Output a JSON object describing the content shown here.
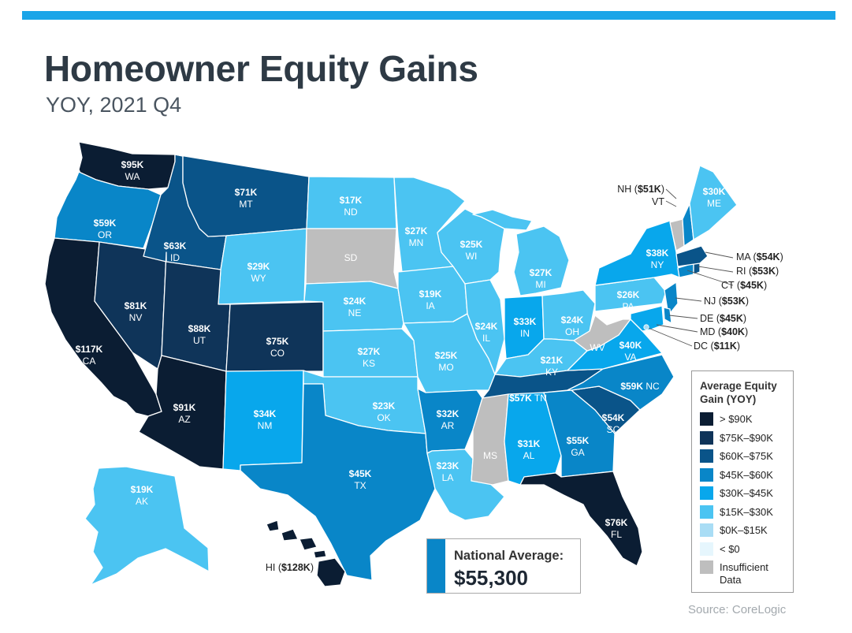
{
  "header": {
    "title": "Homeowner Equity Gains",
    "subtitle": "YOY, 2021 Q4"
  },
  "colors": {
    "accent": "#1BA5E8",
    "gt90": "#0B1D33",
    "c75_90": "#0F3459",
    "c60_75": "#0A5489",
    "c45_60": "#0986C8",
    "c30_45": "#08A7EC",
    "c15_30": "#4BC4F2",
    "c0_15": "#A9DDF5",
    "lt0": "#E6F6FD",
    "insufficient": "#BEBEBE"
  },
  "states": {
    "WA": {
      "value": "$95K",
      "abbr": "WA"
    },
    "OR": {
      "value": "$59K",
      "abbr": "OR"
    },
    "CA": {
      "value": "$117K",
      "abbr": "CA"
    },
    "NV": {
      "value": "$81K",
      "abbr": "NV"
    },
    "ID": {
      "value": "$63K",
      "abbr": "ID"
    },
    "MT": {
      "value": "$71K",
      "abbr": "MT"
    },
    "WY": {
      "value": "$29K",
      "abbr": "WY"
    },
    "UT": {
      "value": "$88K",
      "abbr": "UT"
    },
    "AZ": {
      "value": "$91K",
      "abbr": "AZ"
    },
    "CO": {
      "value": "$75K",
      "abbr": "CO"
    },
    "NM": {
      "value": "$34K",
      "abbr": "NM"
    },
    "ND": {
      "value": "$17K",
      "abbr": "ND"
    },
    "SD": {
      "value": "",
      "abbr": "SD"
    },
    "NE": {
      "value": "$24K",
      "abbr": "NE"
    },
    "KS": {
      "value": "$27K",
      "abbr": "KS"
    },
    "OK": {
      "value": "$23K",
      "abbr": "OK"
    },
    "TX": {
      "value": "$45K",
      "abbr": "TX"
    },
    "MN": {
      "value": "$27K",
      "abbr": "MN"
    },
    "IA": {
      "value": "$19K",
      "abbr": "IA"
    },
    "MO": {
      "value": "$25K",
      "abbr": "MO"
    },
    "AR": {
      "value": "$32K",
      "abbr": "AR"
    },
    "LA": {
      "value": "$23K",
      "abbr": "LA"
    },
    "WI": {
      "value": "$25K",
      "abbr": "WI"
    },
    "IL": {
      "value": "$24K",
      "abbr": "IL"
    },
    "MS": {
      "value": "",
      "abbr": "MS"
    },
    "MI": {
      "value": "$27K",
      "abbr": "MI"
    },
    "IN": {
      "value": "$33K",
      "abbr": "IN"
    },
    "KY": {
      "value": "$21K",
      "abbr": "KY"
    },
    "TN": {
      "value": "$57K",
      "abbr": "TN"
    },
    "AL": {
      "value": "$31K",
      "abbr": "AL"
    },
    "OH": {
      "value": "$24K",
      "abbr": "OH"
    },
    "WV": {
      "value": "",
      "abbr": "WV"
    },
    "GA": {
      "value": "$55K",
      "abbr": "GA"
    },
    "FL": {
      "value": "$76K",
      "abbr": "FL"
    },
    "SC": {
      "value": "$54K",
      "abbr": "SC"
    },
    "NC": {
      "value": "$59K",
      "abbr": "NC"
    },
    "VA": {
      "value": "$40K",
      "abbr": "VA"
    },
    "PA": {
      "value": "$26K",
      "abbr": "PA"
    },
    "NY": {
      "value": "$38K",
      "abbr": "NY"
    },
    "ME": {
      "value": "$30K",
      "abbr": "ME"
    },
    "AK": {
      "value": "$19K",
      "abbr": "AK"
    }
  },
  "callouts": {
    "NH": {
      "name": "NH (",
      "value": "$51K",
      "close": ")"
    },
    "VT": {
      "name": "VT"
    },
    "MA": {
      "name": "MA (",
      "value": "$54K",
      "close": ")"
    },
    "RI": {
      "name": "RI (",
      "value": "$53K",
      "close": ")"
    },
    "CT": {
      "name": "CT (",
      "value": "$45K",
      "close": ")"
    },
    "NJ": {
      "name": "NJ (",
      "value": "$53K",
      "close": ")"
    },
    "DE": {
      "name": "DE (",
      "value": "$45K",
      "close": ")"
    },
    "MD": {
      "name": "MD (",
      "value": "$40K",
      "close": ")"
    },
    "DC": {
      "name": "DC (",
      "value": "$11K",
      "close": ")"
    },
    "HI": {
      "name": "HI (",
      "value": "$128K",
      "close": ")"
    }
  },
  "legend": {
    "title": "Average Equity Gain (YOY)",
    "items": [
      {
        "label": "> $90K",
        "color": "#0B1D33"
      },
      {
        "label": "$75K–$90K",
        "color": "#0F3459"
      },
      {
        "label": "$60K–$75K",
        "color": "#0A5489"
      },
      {
        "label": "$45K–$60K",
        "color": "#0986C8"
      },
      {
        "label": "$30K–$45K",
        "color": "#08A7EC"
      },
      {
        "label": "$15K–$30K",
        "color": "#4BC4F2"
      },
      {
        "label": "$0K–$15K",
        "color": "#A9DDF5"
      },
      {
        "label": "< $0",
        "color": "#E6F6FD"
      },
      {
        "label": "Insufficient Data",
        "color": "#BEBEBE"
      }
    ]
  },
  "national_average": {
    "label": "National Average:",
    "value": "$55,300"
  },
  "source": "Source: CoreLogic"
}
